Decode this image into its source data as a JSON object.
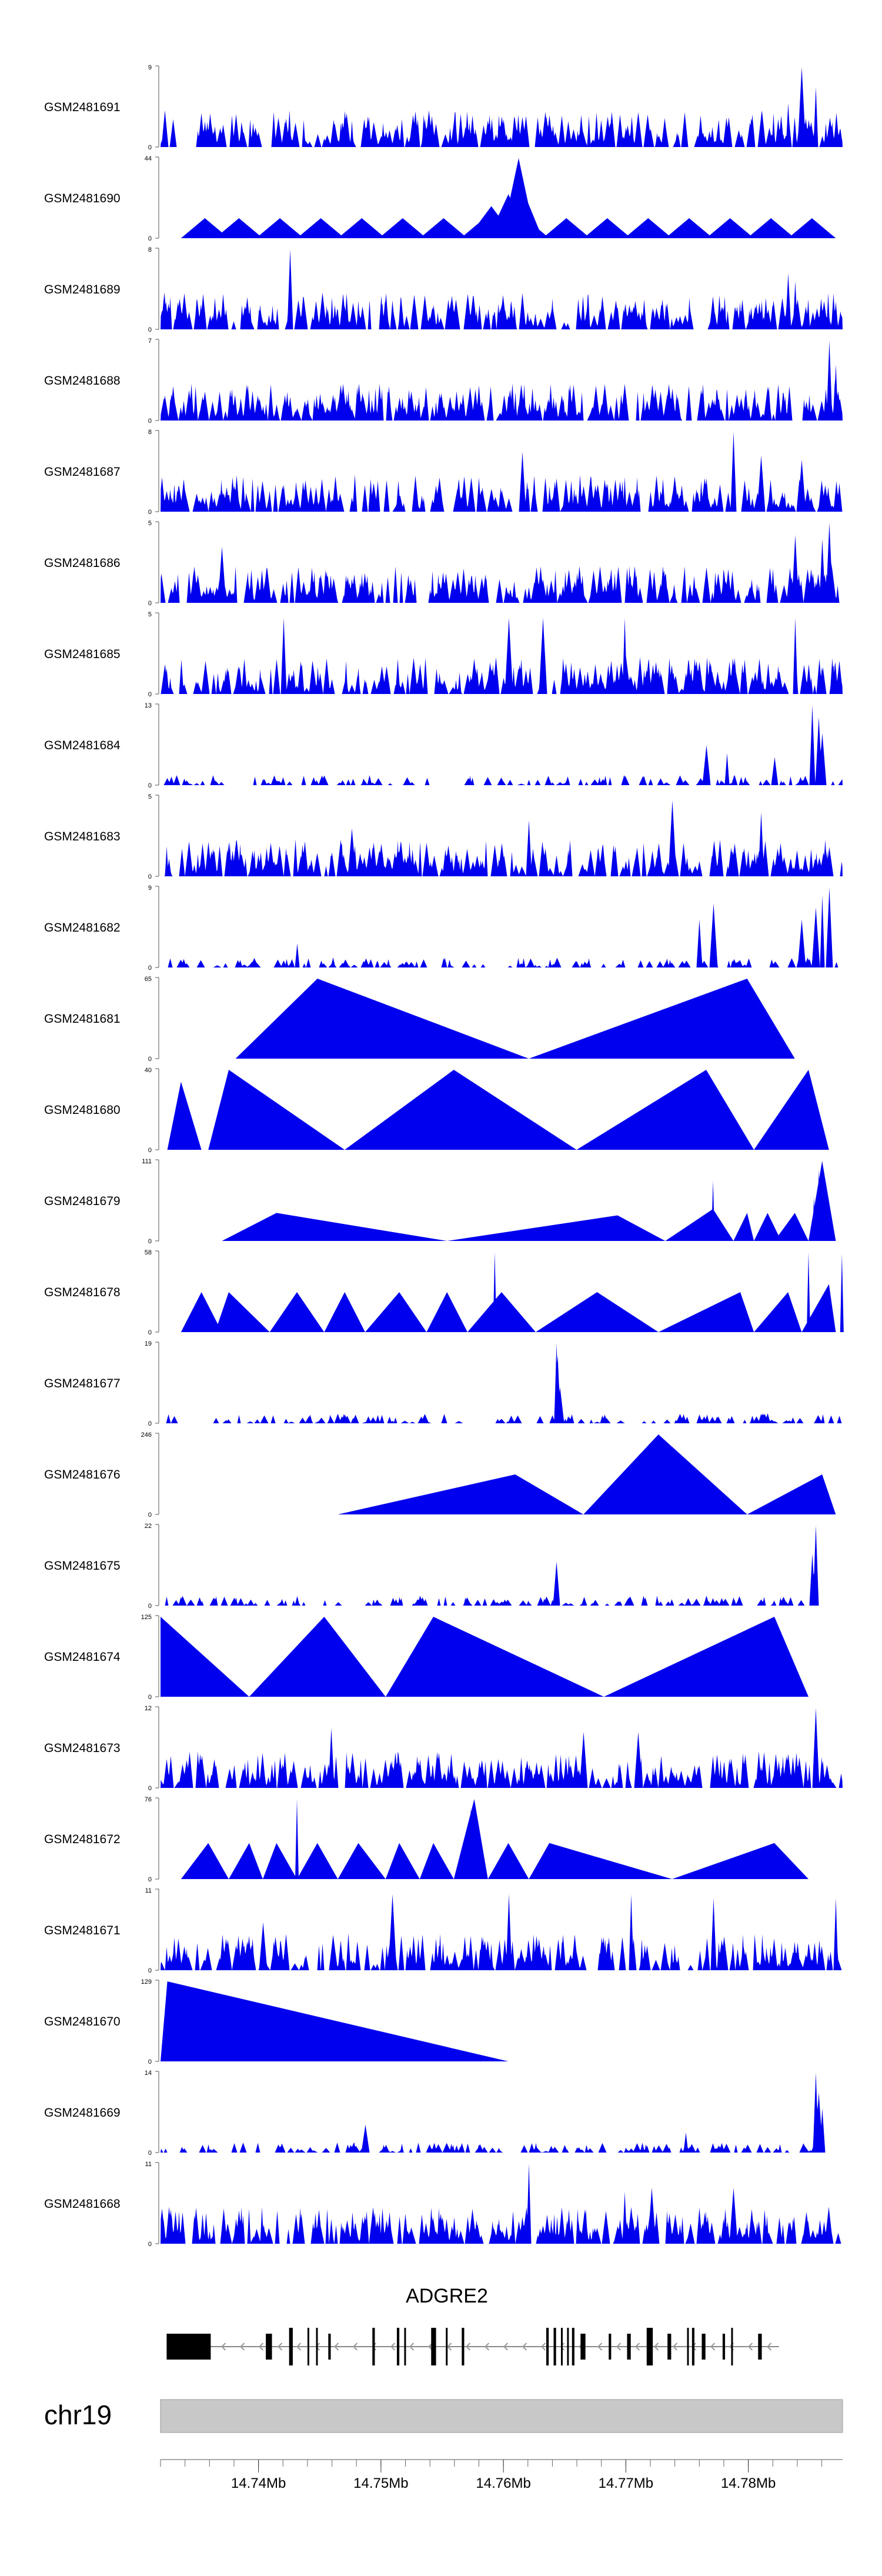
{
  "chart_data": {
    "type": "area",
    "title": "",
    "chromosome": "chr19",
    "gene": {
      "name": "ADGRE2",
      "strand": "-",
      "start": 14.7325,
      "end": 14.7825
    },
    "xaxis": {
      "range": [
        14.732,
        14.7877
      ],
      "unit": "Mb",
      "tick_labels": [
        "14.74Mb",
        "14.75Mb",
        "14.76Mb",
        "14.77Mb",
        "14.78Mb"
      ],
      "tick_values": [
        14.74,
        14.75,
        14.76,
        14.77,
        14.78
      ],
      "minor_step": 0.002
    },
    "fill_color": "#0000ee",
    "tracks": [
      {
        "name": "GSM2481691",
        "ymin": "0",
        "ymax": "9",
        "pattern": "dense",
        "seed": 11,
        "peaks": [
          [
            0.94,
            1.0
          ],
          [
            0.92,
            0.55
          ],
          [
            0.96,
            0.75
          ],
          [
            0.5,
            0.38
          ],
          [
            0.27,
            0.45
          ]
        ]
      },
      {
        "name": "GSM2481690",
        "ymin": "0",
        "ymax": "44",
        "pattern": "triangles",
        "seed": 12,
        "peaks": [
          [
            0.534,
            0.8
          ],
          [
            0.537,
            0.45
          ],
          [
            0.537,
            0.45
          ],
          [
            0.53,
            0.35
          ],
          [
            0.537,
            0.45
          ],
          [
            0.537,
            0.45
          ]
        ],
        "tri": [
          [
            0.03,
            0.1,
            0.25
          ],
          [
            0.08,
            0.15,
            0.25
          ],
          [
            0.14,
            0.21,
            0.25
          ],
          [
            0.2,
            0.27,
            0.25
          ],
          [
            0.26,
            0.33,
            0.25
          ],
          [
            0.32,
            0.39,
            0.25
          ],
          [
            0.38,
            0.45,
            0.25
          ],
          [
            0.44,
            0.51,
            0.25
          ],
          [
            0.5,
            0.57,
            0.25
          ],
          [
            0.56,
            0.63,
            0.25
          ],
          [
            0.62,
            0.69,
            0.25
          ],
          [
            0.68,
            0.75,
            0.25
          ],
          [
            0.74,
            0.81,
            0.25
          ],
          [
            0.8,
            0.87,
            0.25
          ],
          [
            0.86,
            0.93,
            0.25
          ],
          [
            0.92,
            0.99,
            0.25
          ],
          [
            0.51,
            0.56,
            0.52
          ],
          [
            0.51,
            0.56,
            0.52
          ],
          [
            0.5,
            0.55,
            1.0
          ],
          [
            0.48,
            0.54,
            0.55
          ],
          [
            0.45,
            0.52,
            0.4
          ]
        ]
      },
      {
        "name": "GSM2481689",
        "ymin": "0",
        "ymax": "8",
        "pattern": "dense",
        "seed": 13,
        "peaks": [
          [
            0.19,
            1.0
          ],
          [
            0.92,
            0.7
          ],
          [
            0.93,
            0.6
          ],
          [
            0.33,
            0.45
          ]
        ]
      },
      {
        "name": "GSM2481688",
        "ymin": "0",
        "ymax": "7",
        "pattern": "dense",
        "seed": 14,
        "peaks": [
          [
            0.98,
            1.0
          ],
          [
            0.99,
            0.7
          ],
          [
            0.75,
            0.4
          ]
        ]
      },
      {
        "name": "GSM2481687",
        "ymin": "0",
        "ymax": "8",
        "pattern": "dense",
        "seed": 15,
        "peaks": [
          [
            0.84,
            1.0
          ],
          [
            0.53,
            0.75
          ],
          [
            0.94,
            0.65
          ],
          [
            0.88,
            0.7
          ]
        ]
      },
      {
        "name": "GSM2481686",
        "ymin": "0",
        "ymax": "5",
        "pattern": "dense",
        "seed": 16,
        "peaks": [
          [
            0.98,
            1.0
          ],
          [
            0.97,
            0.8
          ],
          [
            0.93,
            0.85
          ],
          [
            0.09,
            0.7
          ]
        ]
      },
      {
        "name": "GSM2481685",
        "ymin": "0",
        "ymax": "5",
        "pattern": "dense",
        "seed": 17,
        "peaks": [
          [
            0.18,
            0.95
          ],
          [
            0.51,
            0.95
          ],
          [
            0.56,
            0.95
          ],
          [
            0.68,
            0.95
          ],
          [
            0.93,
            0.95
          ]
        ]
      },
      {
        "name": "GSM2481684",
        "ymin": "0",
        "ymax": "13",
        "pattern": "low",
        "seed": 18,
        "peaks": [
          [
            0.955,
            1.0
          ],
          [
            0.965,
            0.85
          ],
          [
            0.97,
            0.65
          ],
          [
            0.8,
            0.5
          ],
          [
            0.83,
            0.4
          ],
          [
            0.9,
            0.35
          ]
        ]
      },
      {
        "name": "GSM2481683",
        "ymin": "0",
        "ymax": "5",
        "pattern": "dense",
        "seed": 19,
        "peaks": [
          [
            0.75,
            0.95
          ],
          [
            0.88,
            0.8
          ],
          [
            0.54,
            0.7
          ],
          [
            0.28,
            0.6
          ]
        ]
      },
      {
        "name": "GSM2481682",
        "ymin": "0",
        "ymax": "9",
        "pattern": "low",
        "seed": 20,
        "peaks": [
          [
            0.98,
            1.0
          ],
          [
            0.97,
            0.9
          ],
          [
            0.96,
            0.75
          ],
          [
            0.81,
            0.8
          ],
          [
            0.79,
            0.6
          ],
          [
            0.94,
            0.6
          ],
          [
            0.2,
            0.3
          ]
        ]
      },
      {
        "name": "GSM2481681",
        "ymin": "0",
        "ymax": "65",
        "pattern": "sparse",
        "seed": 21,
        "tri": [
          [
            0.11,
            0.54,
            1.0,
            0.23
          ],
          [
            0.54,
            0.93,
            1.0,
            0.86
          ]
        ]
      },
      {
        "name": "GSM2481680",
        "ymin": "0",
        "ymax": "40",
        "pattern": "sparse",
        "seed": 22,
        "tri": [
          [
            0.01,
            0.06,
            0.85,
            0.03
          ],
          [
            0.07,
            0.27,
            1.0,
            0.1
          ],
          [
            0.27,
            0.61,
            1.0,
            0.43
          ],
          [
            0.61,
            0.87,
            1.0,
            0.8
          ],
          [
            0.87,
            0.98,
            1.0,
            0.95
          ]
        ],
        "spikes": [
          [
            0.106,
            1.0
          ]
        ]
      },
      {
        "name": "GSM2481679",
        "ymin": "0",
        "ymax": "111",
        "pattern": "sparse",
        "seed": 23,
        "tri": [
          [
            0.09,
            0.42,
            0.35,
            0.17
          ],
          [
            0.42,
            0.74,
            0.32,
            0.67
          ],
          [
            0.74,
            0.84,
            0.4,
            0.81
          ],
          [
            0.84,
            0.87,
            0.35,
            0.86
          ],
          [
            0.87,
            0.91,
            0.35,
            0.89
          ],
          [
            0.9,
            0.95,
            0.35,
            0.93
          ],
          [
            0.95,
            0.99,
            1.0,
            0.97
          ]
        ],
        "spikes": [
          [
            0.81,
            0.75
          ],
          [
            0.965,
            0.9
          ],
          [
            0.958,
            0.55
          ]
        ]
      },
      {
        "name": "GSM2481678",
        "ymin": "0",
        "ymax": "58",
        "pattern": "sparse",
        "seed": 24,
        "tri": [
          [
            0.03,
            0.09,
            0.5,
            0.06
          ],
          [
            0.08,
            0.16,
            0.5,
            0.1
          ],
          [
            0.16,
            0.24,
            0.5,
            0.2
          ],
          [
            0.24,
            0.3,
            0.5,
            0.27
          ],
          [
            0.3,
            0.39,
            0.5,
            0.35
          ],
          [
            0.39,
            0.45,
            0.5,
            0.42
          ],
          [
            0.45,
            0.55,
            0.5,
            0.5
          ],
          [
            0.55,
            0.73,
            0.5,
            0.64
          ],
          [
            0.73,
            0.87,
            0.5,
            0.85
          ],
          [
            0.87,
            0.94,
            0.5,
            0.92
          ],
          [
            0.94,
            0.99,
            0.6,
            0.98
          ]
        ],
        "spikes": [
          [
            0.49,
            1.0
          ],
          [
            0.95,
            1.0
          ],
          [
            0.999,
            0.98
          ]
        ]
      },
      {
        "name": "GSM2481677",
        "ymin": "0",
        "ymax": "19",
        "pattern": "low",
        "seed": 25,
        "peaks": [
          [
            0.58,
            1.0
          ],
          [
            0.582,
            0.85
          ],
          [
            0.585,
            0.45
          ]
        ]
      },
      {
        "name": "GSM2481676",
        "ymin": "0",
        "ymax": "246",
        "pattern": "sparse",
        "seed": 26,
        "tri": [
          [
            0.26,
            0.62,
            0.5,
            0.52
          ],
          [
            0.62,
            0.86,
            1.0,
            0.73
          ],
          [
            0.86,
            0.99,
            0.5,
            0.97
          ]
        ]
      },
      {
        "name": "GSM2481675",
        "ymin": "0",
        "ymax": "22",
        "pattern": "low",
        "seed": 27,
        "peaks": [
          [
            0.96,
            1.0
          ],
          [
            0.58,
            0.55
          ],
          [
            0.955,
            0.65
          ]
        ]
      },
      {
        "name": "GSM2481674",
        "ymin": "0",
        "ymax": "125",
        "pattern": "sparse",
        "seed": 28,
        "tri": [
          [
            0.0,
            0.13,
            1.0,
            0.0
          ],
          [
            0.13,
            0.33,
            1.0,
            0.24
          ],
          [
            0.33,
            0.65,
            1.0,
            0.4
          ],
          [
            0.65,
            0.95,
            1.0,
            0.9
          ]
        ],
        "spikes": [
          [
            0.24,
            1.0
          ],
          [
            0.9,
            1.0
          ]
        ]
      },
      {
        "name": "GSM2481673",
        "ymin": "0",
        "ymax": "12",
        "pattern": "dense",
        "seed": 29,
        "peaks": [
          [
            0.96,
            1.0
          ],
          [
            0.25,
            0.75
          ],
          [
            0.7,
            0.7
          ],
          [
            0.62,
            0.7
          ]
        ]
      },
      {
        "name": "GSM2481672",
        "ymin": "0",
        "ymax": "76",
        "pattern": "sparse",
        "seed": 30,
        "tri": [
          [
            0.03,
            0.1,
            0.45,
            0.07
          ],
          [
            0.1,
            0.15,
            0.45,
            0.13
          ],
          [
            0.15,
            0.2,
            0.45,
            0.17
          ],
          [
            0.2,
            0.26,
            0.45,
            0.23
          ],
          [
            0.26,
            0.33,
            0.45,
            0.29
          ],
          [
            0.33,
            0.38,
            0.45,
            0.35
          ],
          [
            0.38,
            0.43,
            0.45,
            0.4
          ],
          [
            0.43,
            0.48,
            1.0,
            0.46
          ],
          [
            0.48,
            0.54,
            0.45,
            0.51
          ],
          [
            0.54,
            0.75,
            0.45,
            0.57
          ],
          [
            0.75,
            0.95,
            0.45,
            0.9
          ]
        ],
        "spikes": [
          [
            0.2,
            1.0
          ],
          [
            0.455,
            0.9
          ]
        ]
      },
      {
        "name": "GSM2481671",
        "ymin": "0",
        "ymax": "11",
        "pattern": "dense",
        "seed": 31,
        "peaks": [
          [
            0.34,
            0.95
          ],
          [
            0.51,
            0.95
          ],
          [
            0.69,
            0.95
          ],
          [
            0.81,
            0.9
          ],
          [
            0.99,
            0.9
          ],
          [
            0.15,
            0.6
          ]
        ]
      },
      {
        "name": "GSM2481670",
        "ymin": "0",
        "ymax": "129",
        "pattern": "sparse",
        "seed": 32,
        "tri": [
          [
            0.0,
            0.51,
            1.0,
            0.01
          ]
        ]
      },
      {
        "name": "GSM2481669",
        "ymin": "0",
        "ymax": "14",
        "pattern": "low",
        "seed": 33,
        "peaks": [
          [
            0.96,
            1.0
          ],
          [
            0.965,
            0.75
          ],
          [
            0.97,
            0.55
          ],
          [
            0.3,
            0.35
          ],
          [
            0.77,
            0.25
          ]
        ]
      },
      {
        "name": "GSM2481668",
        "ymin": "0",
        "ymax": "11",
        "pattern": "dense",
        "seed": 34,
        "peaks": [
          [
            0.54,
            1.0
          ],
          [
            0.68,
            0.65
          ],
          [
            0.72,
            0.7
          ],
          [
            0.84,
            0.7
          ]
        ]
      }
    ],
    "exons": [
      {
        "start": 14.7325,
        "end": 14.7361,
        "tall": false
      },
      {
        "start": 14.7406,
        "end": 14.7411,
        "tall": false
      },
      {
        "start": 14.7425,
        "end": 14.7428,
        "tall": true
      },
      {
        "start": 14.744,
        "end": 14.7441,
        "tall": true
      },
      {
        "start": 14.7447,
        "end": 14.7448,
        "tall": true
      },
      {
        "start": 14.7457,
        "end": 14.7459,
        "tall": false
      },
      {
        "start": 14.7493,
        "end": 14.7495,
        "tall": true
      },
      {
        "start": 14.7513,
        "end": 14.7515,
        "tall": true
      },
      {
        "start": 14.7519,
        "end": 14.752,
        "tall": true
      },
      {
        "start": 14.7541,
        "end": 14.7545,
        "tall": true
      },
      {
        "start": 14.7553,
        "end": 14.7554,
        "tall": true
      },
      {
        "start": 14.7566,
        "end": 14.7568,
        "tall": true
      },
      {
        "start": 14.7635,
        "end": 14.7637,
        "tall": true
      },
      {
        "start": 14.7641,
        "end": 14.7643,
        "tall": true
      },
      {
        "start": 14.7647,
        "end": 14.7648,
        "tall": true
      },
      {
        "start": 14.7652,
        "end": 14.7653,
        "tall": true
      },
      {
        "start": 14.7656,
        "end": 14.7658,
        "tall": true
      },
      {
        "start": 14.7663,
        "end": 14.7667,
        "tall": false
      },
      {
        "start": 14.7686,
        "end": 14.7688,
        "tall": false
      },
      {
        "start": 14.7701,
        "end": 14.7704,
        "tall": false
      },
      {
        "start": 14.7717,
        "end": 14.7722,
        "tall": true
      },
      {
        "start": 14.7734,
        "end": 14.7737,
        "tall": false
      },
      {
        "start": 14.775,
        "end": 14.7751,
        "tall": true
      },
      {
        "start": 14.7754,
        "end": 14.7756,
        "tall": true
      },
      {
        "start": 14.7762,
        "end": 14.7765,
        "tall": false
      },
      {
        "start": 14.7779,
        "end": 14.7781,
        "tall": false
      },
      {
        "start": 14.7786,
        "end": 14.7787,
        "tall": true
      },
      {
        "start": 14.7808,
        "end": 14.7811,
        "tall": false
      }
    ]
  }
}
